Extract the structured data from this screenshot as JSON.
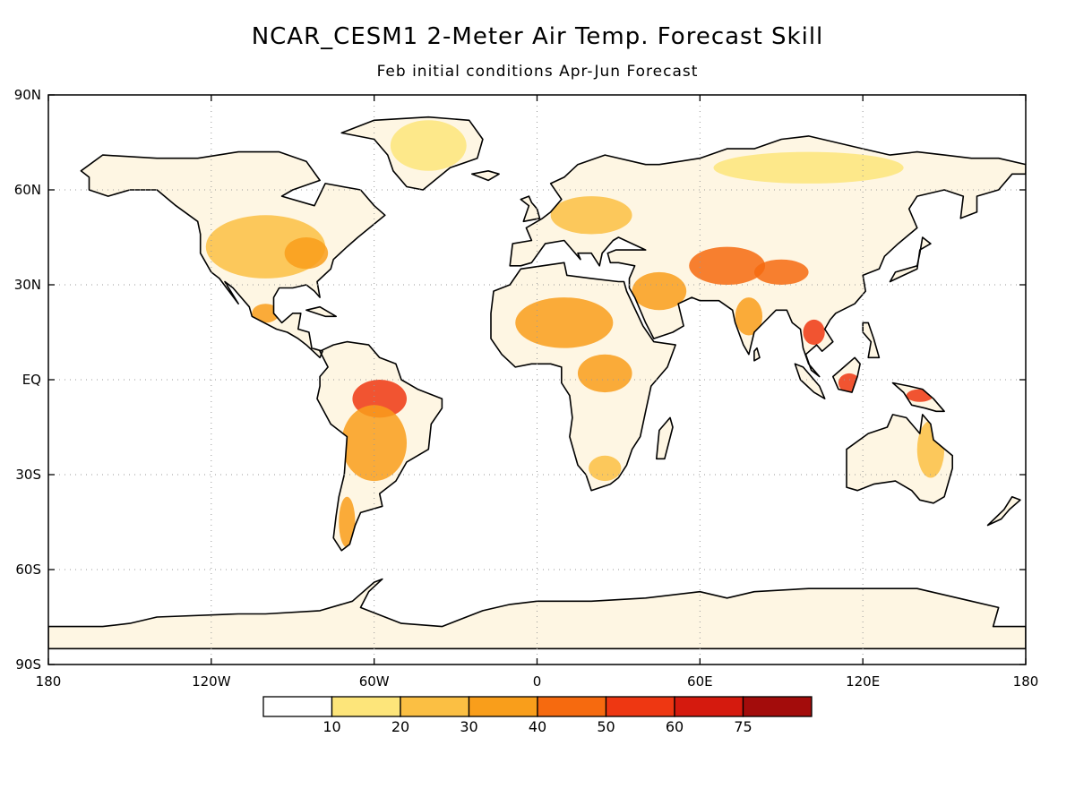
{
  "title": "NCAR_CESM1 2-Meter Air Temp. Forecast Skill",
  "subtitle": "Feb initial conditions   Apr-Jun Forecast",
  "lat_labels": [
    "90N",
    "60N",
    "30N",
    "EQ",
    "30S",
    "60S",
    "90S"
  ],
  "lon_labels": [
    "180",
    "120W",
    "60W",
    "0",
    "60E",
    "120E",
    "180"
  ],
  "colorbar": {
    "colors": [
      "#ffffff",
      "#fde57a",
      "#fbbf43",
      "#f99e1b",
      "#f66a0f",
      "#ee3712",
      "#d51a0e",
      "#a30c0b"
    ],
    "labels": [
      "10",
      "20",
      "30",
      "40",
      "50",
      "60",
      "75"
    ]
  },
  "map_data": {
    "projection": "equirectangular",
    "lon_range": [
      -180,
      180
    ],
    "lat_range": [
      -90,
      90
    ],
    "grid": "dotted every 30 degrees",
    "skill_regions": [
      {
        "name": "North America",
        "level": 2,
        "lon": -100,
        "lat": 42,
        "rx": 22,
        "ry": 10
      },
      {
        "name": "Eastern US",
        "level": 3,
        "lon": -85,
        "lat": 40,
        "rx": 8,
        "ry": 5
      },
      {
        "name": "Greenland",
        "level": 1,
        "lon": -40,
        "lat": 74,
        "rx": 14,
        "ry": 8
      },
      {
        "name": "Mexico",
        "level": 3,
        "lon": -100,
        "lat": 21,
        "rx": 5,
        "ry": 3
      },
      {
        "name": "Amazon",
        "level": 5,
        "lon": -58,
        "lat": -6,
        "rx": 10,
        "ry": 6
      },
      {
        "name": "South America",
        "level": 3,
        "lon": -60,
        "lat": -20,
        "rx": 12,
        "ry": 12
      },
      {
        "name": "Sahara",
        "level": 3,
        "lon": 10,
        "lat": 18,
        "rx": 18,
        "ry": 8
      },
      {
        "name": "Central Africa",
        "level": 3,
        "lon": 25,
        "lat": 2,
        "rx": 10,
        "ry": 6
      },
      {
        "name": "Southern Africa",
        "level": 2,
        "lon": 25,
        "lat": -28,
        "rx": 6,
        "ry": 4
      },
      {
        "name": "Middle East",
        "level": 3,
        "lon": 45,
        "lat": 28,
        "rx": 10,
        "ry": 6
      },
      {
        "name": "Central Asia",
        "level": 4,
        "lon": 70,
        "lat": 36,
        "rx": 14,
        "ry": 6
      },
      {
        "name": "Tibet",
        "level": 4,
        "lon": 90,
        "lat": 34,
        "rx": 10,
        "ry": 4
      },
      {
        "name": "Siberia",
        "level": 1,
        "lon": 100,
        "lat": 67,
        "rx": 35,
        "ry": 5
      },
      {
        "name": "Europe",
        "level": 2,
        "lon": 20,
        "lat": 52,
        "rx": 15,
        "ry": 6
      },
      {
        "name": "India",
        "level": 3,
        "lon": 78,
        "lat": 20,
        "rx": 5,
        "ry": 6
      },
      {
        "name": "Indochina",
        "level": 5,
        "lon": 102,
        "lat": 15,
        "rx": 4,
        "ry": 4
      },
      {
        "name": "Borneo",
        "level": 5,
        "lon": 115,
        "lat": -1,
        "rx": 4,
        "ry": 3
      },
      {
        "name": "New Guinea",
        "level": 5,
        "lon": 141,
        "lat": -5,
        "rx": 5,
        "ry": 2
      },
      {
        "name": "Australia",
        "level": 2,
        "lon": 145,
        "lat": -22,
        "rx": 5,
        "ry": 9
      },
      {
        "name": "Patagonia",
        "level": 3,
        "lon": -70,
        "lat": -45,
        "rx": 3,
        "ry": 8
      }
    ]
  }
}
